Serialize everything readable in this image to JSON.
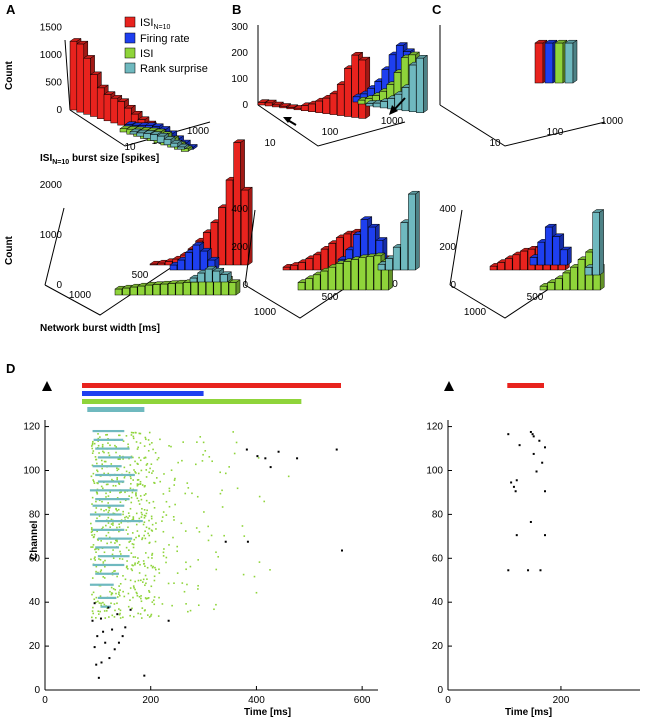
{
  "colors": {
    "isi_n10": "#e8231e",
    "firing_rate": "#1e3ff0",
    "isi": "#8fd43a",
    "rank_surprise": "#6fb9bf",
    "axis": "#000000",
    "black_spikes": "#000000"
  },
  "legend": {
    "isi_n10_main": "ISI",
    "isi_n10_sub": "N=10",
    "firing_rate": "Firing rate",
    "isi": "ISI",
    "rank_surprise": "Rank surprise"
  },
  "panels": {
    "A": {
      "label": "A"
    },
    "B": {
      "label": "B"
    },
    "C": {
      "label": "C"
    },
    "D": {
      "label": "D"
    }
  },
  "chart_data": [
    {
      "id": "A-top",
      "type": "bar3d",
      "ylabel": "Count",
      "xlabel_main": "ISI",
      "xlabel_sub": "N=10",
      "xlabel_rest": " burst size [spikes]",
      "z_ticks": [
        "1500",
        "1000",
        "500",
        "0"
      ],
      "z_tick_values": [
        1500,
        1000,
        500,
        0
      ],
      "z_range": [
        0,
        1500
      ],
      "x_ticks": [
        "10",
        "100",
        "1000"
      ],
      "series": [
        {
          "name": "ISI N=10",
          "color_key": "isi_n10",
          "values": [
            1250,
            1240,
            1020,
            760,
            560,
            480,
            450,
            430,
            350,
            280,
            220,
            180,
            130,
            110,
            80,
            50
          ]
        },
        {
          "name": "Firing rate",
          "color_key": "firing_rate",
          "values": [
            100,
            120,
            160,
            200,
            220,
            210,
            170,
            120,
            80,
            40
          ]
        },
        {
          "name": "ISI",
          "color_key": "isi",
          "values": [
            60,
            90,
            120,
            150,
            180,
            200,
            190,
            150,
            90,
            50
          ]
        },
        {
          "name": "Rank surprise",
          "color_key": "rank_surprise",
          "values": [
            40,
            60,
            90,
            110,
            120,
            100,
            70,
            40
          ]
        }
      ]
    },
    {
      "id": "B-top",
      "type": "bar3d",
      "z_ticks": [
        "300",
        "200",
        "100",
        "0"
      ],
      "z_tick_values": [
        300,
        200,
        100,
        0
      ],
      "z_range": [
        0,
        300
      ],
      "x_ticks": [
        "10",
        "100",
        "1000"
      ],
      "series": [
        {
          "name": "ISI N=10",
          "color_key": "isi_n10",
          "values": [
            10,
            12,
            8,
            6,
            5,
            6,
            20,
            30,
            45,
            60,
            80,
            120,
            185,
            240,
            225
          ]
        },
        {
          "name": "Firing rate",
          "color_key": "firing_rate",
          "values": [
            20,
            35,
            60,
            90,
            140,
            200,
            240,
            220
          ]
        },
        {
          "name": "ISI",
          "color_key": "isi",
          "values": [
            15,
            25,
            40,
            60,
            90,
            140,
            200,
            215
          ]
        },
        {
          "name": "Rank surprise",
          "color_key": "rank_surprise",
          "values": [
            10,
            15,
            25,
            40,
            60,
            90,
            180,
            210
          ]
        }
      ]
    },
    {
      "id": "C-top",
      "type": "bar3d",
      "x_ticks": [
        "10",
        "100",
        "1000"
      ],
      "series": [
        {
          "name": "ISI N=10",
          "color_key": "isi_n10",
          "values": [
            200
          ]
        },
        {
          "name": "Firing rate",
          "color_key": "firing_rate",
          "values": [
            200
          ]
        },
        {
          "name": "ISI",
          "color_key": "isi",
          "values": [
            200
          ]
        },
        {
          "name": "Rank surprise",
          "color_key": "rank_surprise",
          "values": [
            200
          ]
        }
      ]
    },
    {
      "id": "A-bottom",
      "type": "bar3d",
      "ylabel": "Count",
      "xlabel": "Network burst width [ms]",
      "z_ticks": [
        "2000",
        "1000",
        "0"
      ],
      "z_tick_values": [
        2000,
        1000,
        0
      ],
      "z_range": [
        0,
        2000
      ],
      "x_ticks": [
        "1000",
        "500",
        "0"
      ],
      "series": [
        {
          "name": "ISI N=10",
          "color_key": "isi_n10",
          "values": [
            20,
            40,
            70,
            120,
            200,
            320,
            480,
            650,
            850,
            1150,
            1700,
            2450,
            1500
          ]
        },
        {
          "name": "Firing rate",
          "color_key": "firing_rate",
          "values": [
            100,
            200,
            350,
            500,
            380,
            200
          ]
        },
        {
          "name": "ISI",
          "color_key": "isi",
          "values": [
            120,
            140,
            160,
            180,
            200,
            210,
            220,
            230,
            240,
            250,
            260,
            270,
            280,
            300,
            320,
            250
          ]
        },
        {
          "name": "Rank surprise",
          "color_key": "rank_surprise",
          "values": [
            80,
            180,
            260,
            220,
            150
          ]
        }
      ]
    },
    {
      "id": "B-bottom",
      "type": "bar3d",
      "z_ticks": [
        "400",
        "200",
        "0"
      ],
      "z_tick_values": [
        400,
        200,
        0
      ],
      "z_range": [
        0,
        400
      ],
      "x_ticks": [
        "1000",
        "500",
        "0"
      ],
      "series": [
        {
          "name": "ISI N=10",
          "color_key": "isi_n10",
          "values": [
            15,
            25,
            40,
            60,
            80,
            110,
            140,
            170,
            190,
            200,
            180,
            150,
            100,
            60
          ]
        },
        {
          "name": "Firing rate",
          "color_key": "firing_rate",
          "values": [
            30,
            80,
            160,
            240,
            200,
            130
          ]
        },
        {
          "name": "ISI",
          "color_key": "isi",
          "values": [
            40,
            60,
            80,
            100,
            120,
            140,
            150,
            160,
            170,
            175,
            180,
            150
          ]
        },
        {
          "name": "Rank surprise",
          "color_key": "rank_surprise",
          "values": [
            30,
            60,
            120,
            250,
            400
          ]
        }
      ]
    },
    {
      "id": "C-bottom",
      "type": "bar3d",
      "z_ticks": [
        "400",
        "200",
        "0"
      ],
      "z_tick_values": [
        400,
        200,
        0
      ],
      "z_range": [
        0,
        400
      ],
      "x_ticks": [
        "1000",
        "500",
        "0"
      ],
      "series": [
        {
          "name": "ISI N=10",
          "color_key": "isi_n10",
          "values": [
            20,
            40,
            60,
            80,
            100,
            110,
            120,
            110,
            90,
            60
          ]
        },
        {
          "name": "Firing rate",
          "color_key": "firing_rate",
          "values": [
            40,
            120,
            200,
            150,
            80
          ]
        },
        {
          "name": "ISI",
          "color_key": "isi",
          "values": [
            20,
            40,
            60,
            90,
            120,
            160,
            200,
            120
          ]
        },
        {
          "name": "Rank surprise",
          "color_key": "rank_surprise",
          "values": [
            40,
            330
          ]
        }
      ]
    },
    {
      "id": "D-left",
      "type": "scatter",
      "ylabel": "Channel",
      "xlabel": "Time [ms]",
      "x_ticks": [
        "0",
        "200",
        "400",
        "600"
      ],
      "x_tick_values": [
        0,
        200,
        400,
        600
      ],
      "x_range": [
        0,
        630
      ],
      "y_ticks": [
        "0",
        "20",
        "40",
        "60",
        "80",
        "100",
        "120"
      ],
      "y_tick_values": [
        0,
        20,
        40,
        60,
        80,
        100,
        120
      ],
      "y_range": [
        0,
        123
      ],
      "detections": [
        {
          "method": "ISI N=10",
          "color_key": "isi_n10",
          "start": 70,
          "end": 560
        },
        {
          "method": "Firing rate",
          "color_key": "firing_rate",
          "start": 70,
          "end": 300
        },
        {
          "method": "ISI",
          "color_key": "isi",
          "start": 70,
          "end": 485
        },
        {
          "method": "Rank surprise",
          "color_key": "rank_surprise",
          "start": 80,
          "end": 188
        }
      ],
      "green_spike_count": 640,
      "green_spike_region": {
        "channel_min": 33,
        "channel_max": 118,
        "time_min": 85,
        "time_max": 200,
        "tail_time_max": 480
      },
      "blue_bursts": [
        {
          "channel": 118,
          "start": 90,
          "end": 150
        },
        {
          "channel": 114,
          "start": 92,
          "end": 148
        },
        {
          "channel": 110,
          "start": 95,
          "end": 160
        },
        {
          "channel": 106,
          "start": 100,
          "end": 165
        },
        {
          "channel": 102,
          "start": 90,
          "end": 145
        },
        {
          "channel": 98,
          "start": 95,
          "end": 170
        },
        {
          "channel": 95,
          "start": 100,
          "end": 150
        },
        {
          "channel": 91,
          "start": 85,
          "end": 175
        },
        {
          "channel": 87,
          "start": 95,
          "end": 160
        },
        {
          "channel": 84,
          "start": 90,
          "end": 150
        },
        {
          "channel": 80,
          "start": 85,
          "end": 145
        },
        {
          "channel": 77,
          "start": 95,
          "end": 185
        },
        {
          "channel": 73,
          "start": 90,
          "end": 150
        },
        {
          "channel": 69,
          "start": 100,
          "end": 165
        },
        {
          "channel": 65,
          "start": 95,
          "end": 140
        },
        {
          "channel": 61,
          "start": 100,
          "end": 160
        },
        {
          "channel": 57,
          "start": 90,
          "end": 150
        },
        {
          "channel": 53,
          "start": 95,
          "end": 140
        },
        {
          "channel": 48,
          "start": 85,
          "end": 130
        },
        {
          "channel": 42,
          "start": 100,
          "end": 135
        },
        {
          "channel": 38,
          "start": 105,
          "end": 125
        }
      ],
      "black_spikes": [
        [
          380,
          110
        ],
        [
          440,
          109
        ],
        [
          415,
          106
        ],
        [
          475,
          106
        ],
        [
          550,
          110
        ],
        [
          400,
          107
        ],
        [
          425,
          102
        ],
        [
          340,
          68
        ],
        [
          382,
          68
        ],
        [
          560,
          64
        ],
        [
          232,
          32
        ],
        [
          186,
          7
        ],
        [
          100,
          6
        ],
        [
          95,
          12
        ],
        [
          105,
          13
        ],
        [
          120,
          15
        ],
        [
          130,
          19
        ],
        [
          92,
          20
        ],
        [
          112,
          22
        ],
        [
          138,
          22
        ],
        [
          145,
          25
        ],
        [
          97,
          25
        ],
        [
          108,
          27
        ],
        [
          125,
          28
        ],
        [
          150,
          29
        ],
        [
          88,
          32
        ],
        [
          104,
          33
        ],
        [
          135,
          35
        ],
        [
          160,
          37
        ],
        [
          118,
          38
        ],
        [
          92,
          40
        ]
      ]
    },
    {
      "id": "D-right",
      "type": "scatter",
      "xlabel": "Time [ms]",
      "x_ticks": [
        "0",
        "200"
      ],
      "x_tick_values": [
        0,
        200
      ],
      "x_range": [
        0,
        340
      ],
      "y_ticks": [
        "0",
        "20",
        "40",
        "60",
        "80",
        "100",
        "120"
      ],
      "y_tick_values": [
        0,
        20,
        40,
        60,
        80,
        100,
        120
      ],
      "y_range": [
        0,
        123
      ],
      "detections": [
        {
          "method": "ISI N=10",
          "color_key": "isi_n10",
          "start": 105,
          "end": 170
        }
      ],
      "black_spikes": [
        [
          105,
          117
        ],
        [
          145,
          118
        ],
        [
          148,
          117
        ],
        [
          150,
          116
        ],
        [
          160,
          114
        ],
        [
          170,
          111
        ],
        [
          125,
          112
        ],
        [
          150,
          108
        ],
        [
          165,
          104
        ],
        [
          155,
          100
        ],
        [
          120,
          96
        ],
        [
          115,
          93
        ],
        [
          110,
          95
        ],
        [
          118,
          91
        ],
        [
          170,
          91
        ],
        [
          145,
          77
        ],
        [
          120,
          71
        ],
        [
          170,
          71
        ],
        [
          105,
          55
        ],
        [
          140,
          55
        ],
        [
          162,
          55
        ]
      ]
    }
  ]
}
